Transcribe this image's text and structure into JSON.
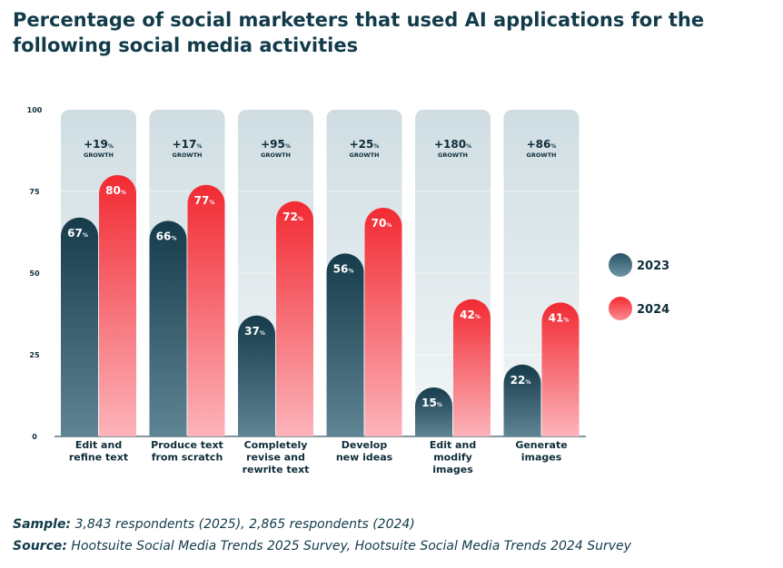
{
  "chart_data": {
    "type": "bar",
    "title": "Percentage of social marketers that used AI applications for the following social media activities",
    "xlabel": "",
    "ylabel": "",
    "ylim": [
      0,
      100
    ],
    "yticks": [
      0,
      25,
      50,
      75,
      100
    ],
    "categories": [
      [
        "Edit and",
        "refine text"
      ],
      [
        "Produce text",
        "from scratch"
      ],
      [
        "Completely",
        "revise and",
        "rewrite text"
      ],
      [
        "Develop",
        "new ideas"
      ],
      [
        "Edit and",
        "modify",
        "images"
      ],
      [
        "Generate",
        "images"
      ]
    ],
    "series": [
      {
        "name": "2023",
        "values": [
          67,
          66,
          37,
          56,
          15,
          22
        ],
        "color": "#1b4556"
      },
      {
        "name": "2024",
        "values": [
          80,
          77,
          72,
          70,
          42,
          41
        ],
        "color": "#f2313a"
      }
    ],
    "growth": [
      "+19",
      "+17",
      "+95",
      "+25",
      "+180",
      "+86"
    ],
    "growth_unit": "%",
    "growth_label": "GROWTH",
    "value_unit": "%",
    "legend_position": "right",
    "colors": {
      "panel": "#d5e2e6",
      "series_2023_top": "#163b4b",
      "series_2023_bottom": "#5f8594",
      "series_2024_top": "#f22a33",
      "series_2024_bottom": "#fcb4ba",
      "text_dark": "#0f2d3a"
    }
  },
  "footnotes": {
    "sample_label": "Sample:",
    "sample_text": "3,843 respondents (2025), 2,865 respondents (2024)",
    "source_label": "Source:",
    "source_text": "Hootsuite Social Media Trends 2025 Survey, Hootsuite Social Media Trends 2024 Survey"
  }
}
